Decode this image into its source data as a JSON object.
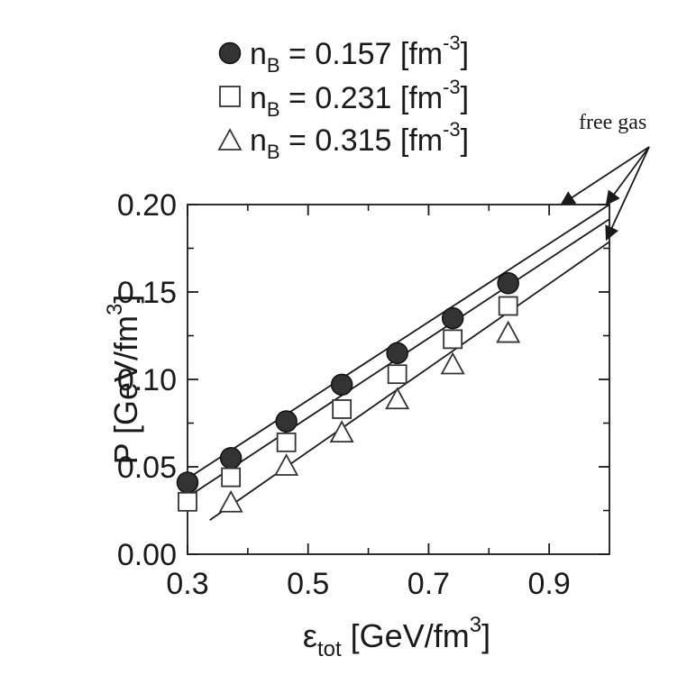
{
  "chart_data": {
    "type": "scatter",
    "title": "",
    "xlabel": {
      "main": "ε",
      "sub": "tot",
      "unit_pre": " [GeV/fm",
      "unit_sup": "3",
      "unit_post": "]"
    },
    "ylabel": {
      "main": "P [GeV/fm",
      "sup": "3",
      "post": "]"
    },
    "xlim": [
      0.3,
      1.0
    ],
    "ylim": [
      0.0,
      0.2
    ],
    "x_ticks": [
      "0.3",
      "0.5",
      "0.7",
      "0.9"
    ],
    "y_ticks": [
      "0.00",
      "0.05",
      "0.10",
      "0.15",
      "0.20"
    ],
    "legend_placement": "top",
    "series": [
      {
        "marker": "filled-circle",
        "legend": {
          "pre": "n",
          "sub": "B",
          "mid": " = 0.157 [fm",
          "sup": "-3",
          "post": "]"
        },
        "x": [
          0.3,
          0.372,
          0.464,
          0.556,
          0.648,
          0.74,
          0.832
        ],
        "y": [
          0.041,
          0.055,
          0.076,
          0.097,
          0.115,
          0.135,
          0.155
        ]
      },
      {
        "marker": "open-square",
        "legend": {
          "pre": "n",
          "sub": "B",
          "mid": " = 0.231 [fm",
          "sup": "-3",
          "post": "]"
        },
        "x": [
          0.3,
          0.372,
          0.464,
          0.556,
          0.648,
          0.74,
          0.832
        ],
        "y": [
          0.03,
          0.044,
          0.064,
          0.083,
          0.103,
          0.123,
          0.142
        ]
      },
      {
        "marker": "open-triangle",
        "legend": {
          "pre": "n",
          "sub": "B",
          "mid": " = 0.315 [fm",
          "sup": "-3",
          "post": "]"
        },
        "x": [
          0.372,
          0.464,
          0.556,
          0.648,
          0.74,
          0.832
        ],
        "y": [
          0.029,
          0.05,
          0.069,
          0.088,
          0.108,
          0.126
        ]
      }
    ],
    "lines": [
      {
        "x": [
          0.3,
          1.0
        ],
        "y": [
          0.0433,
          0.2
        ]
      },
      {
        "x": [
          0.3,
          1.0
        ],
        "y": [
          0.0327,
          0.1917
        ]
      },
      {
        "x": [
          0.337,
          1.0
        ],
        "y": [
          0.0195,
          0.1787
        ]
      }
    ],
    "annotations": [
      {
        "text": "free gas",
        "arrow_targets": [
          [
            0.92,
            0.2
          ],
          [
            0.995,
            0.2
          ],
          [
            0.995,
            0.18
          ]
        ]
      }
    ]
  }
}
